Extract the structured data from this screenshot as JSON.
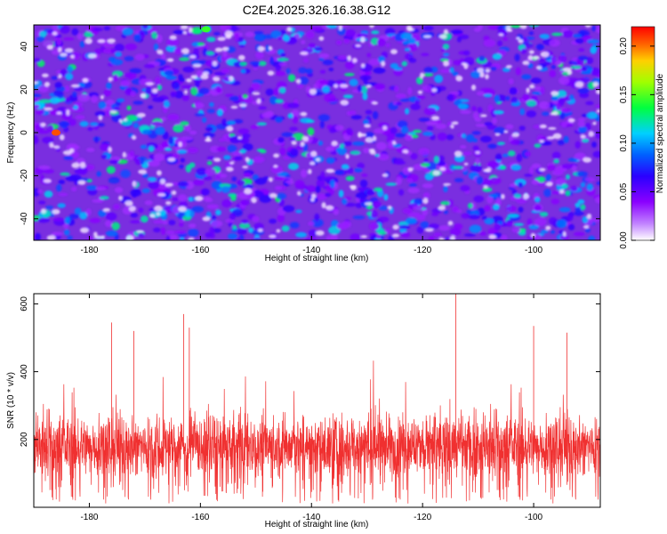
{
  "chart_data": [
    {
      "type": "heatmap",
      "title": "C2E4.2025.326.16.38.G12",
      "xlabel": "Height of straight line (km)",
      "ylabel": "Frequency (Hz)",
      "xlim": [
        -190,
        -88
      ],
      "ylim": [
        -50,
        50
      ],
      "xticks": [
        -180,
        -160,
        -140,
        -120,
        -100
      ],
      "yticks": [
        -40,
        -20,
        0,
        20,
        40
      ],
      "colorbar": {
        "label": "Normalized spectral amplitude",
        "range": [
          0.0,
          0.22
        ],
        "ticks": [
          "0.00",
          "0.05",
          "0.10",
          "0.15",
          "0.20"
        ],
        "colors": [
          "#ffffff",
          "#8a00ff",
          "#2a00ff",
          "#0060ff",
          "#00d0ff",
          "#00ff40",
          "#a0ff00",
          "#ffd000",
          "#ff6000",
          "#ff0000"
        ]
      },
      "notable_peaks": [
        {
          "x": -186,
          "y": 0,
          "value": 0.2
        },
        {
          "x": -159,
          "y": 48,
          "value": 0.13
        }
      ],
      "typical_value_range": [
        0.02,
        0.12
      ]
    },
    {
      "type": "line",
      "xlabel": "Height of straight line (km)",
      "ylabel": "SNR (10 * v/v)",
      "xlim": [
        -190,
        -88
      ],
      "ylim": [
        0,
        630
      ],
      "xticks": [
        -180,
        -160,
        -140,
        -120,
        -100
      ],
      "yticks": [
        200,
        400,
        600
      ],
      "series_color": "#f03030",
      "typical_range": [
        40,
        320
      ],
      "mean": 170,
      "peaks": [
        {
          "x": -114,
          "y": 630
        },
        {
          "x": -163,
          "y": 570
        },
        {
          "x": -176,
          "y": 545
        },
        {
          "x": -100,
          "y": 535
        },
        {
          "x": -162,
          "y": 530
        },
        {
          "x": -172,
          "y": 520
        },
        {
          "x": -94,
          "y": 515
        }
      ]
    }
  ]
}
